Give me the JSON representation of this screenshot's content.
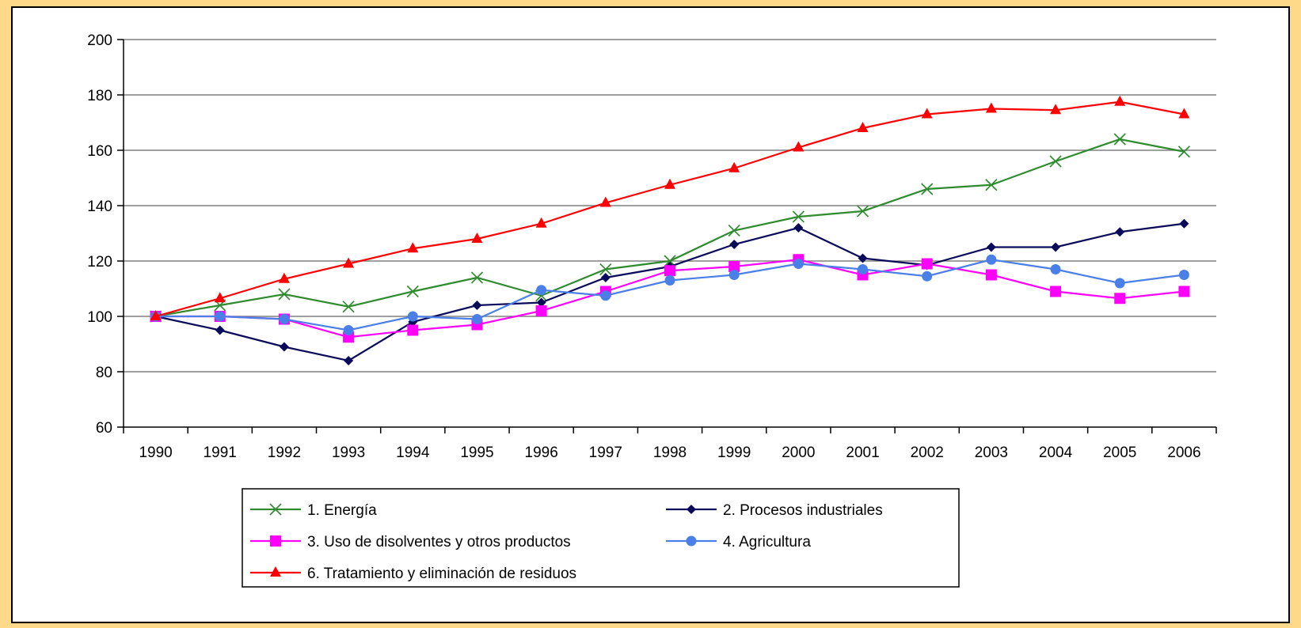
{
  "chart_data": {
    "type": "line",
    "title": "",
    "xlabel": "",
    "ylabel": "",
    "ylim": [
      60,
      200
    ],
    "yticks": [
      60,
      80,
      100,
      120,
      140,
      160,
      180,
      200
    ],
    "grid": "horizontal",
    "legend_placement": "bottom",
    "categories": [
      "1990",
      "1991",
      "1992",
      "1993",
      "1994",
      "1995",
      "1996",
      "1997",
      "1998",
      "1999",
      "2000",
      "2001",
      "2002",
      "2003",
      "2004",
      "2005",
      "2006"
    ],
    "series": [
      {
        "name": "1. Energía",
        "color": "#2e8b2e",
        "marker": "x",
        "values": [
          100,
          104,
          108,
          103.5,
          109,
          114,
          107.5,
          117,
          120,
          131,
          136,
          138,
          146,
          147.5,
          156,
          164,
          159.5
        ]
      },
      {
        "name": "2. Procesos industriales",
        "color": "#0a0a5a",
        "marker": "diamond",
        "values": [
          100,
          95,
          89,
          84,
          98,
          104,
          105,
          114,
          118,
          126,
          132,
          121,
          118.5,
          125,
          125,
          130.5,
          133.5
        ]
      },
      {
        "name": "3. Uso de disolventes y otros productos",
        "color": "#ff00ff",
        "marker": "square",
        "values": [
          100,
          100,
          99,
          92.5,
          95,
          97,
          102,
          109,
          116.5,
          118,
          120.5,
          115,
          119,
          115,
          109,
          106.5,
          109
        ]
      },
      {
        "name": "4. Agricultura",
        "color": "#4a7fe8",
        "marker": "circle",
        "values": [
          100,
          100,
          99,
          95,
          100,
          99,
          109.5,
          107.5,
          113,
          115,
          119,
          117,
          114.5,
          120.5,
          117,
          112,
          115
        ]
      },
      {
        "name": "6. Tratamiento y eliminación de residuos",
        "color": "#ff0000",
        "marker": "triangle",
        "values": [
          100,
          106.5,
          113.5,
          119,
          124.5,
          128,
          133.5,
          141,
          147.5,
          153.5,
          161,
          168,
          173,
          175,
          174.5,
          177.5,
          173
        ]
      }
    ]
  }
}
